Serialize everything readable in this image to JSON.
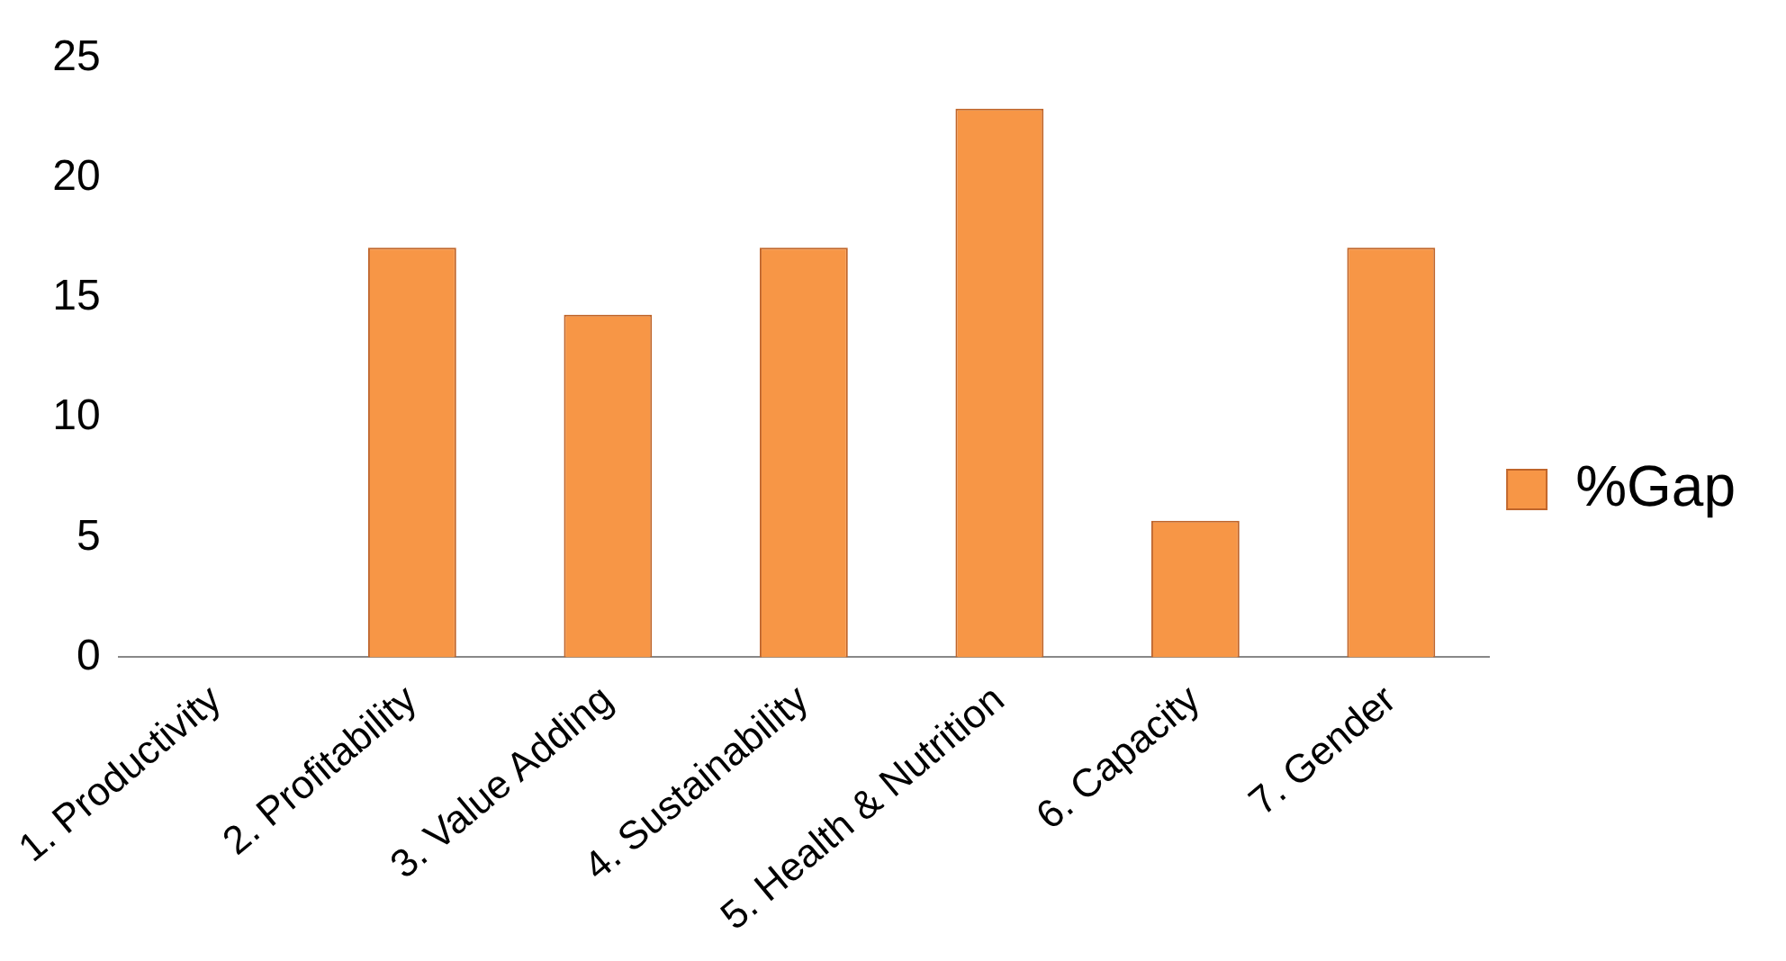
{
  "chart_data": {
    "type": "bar",
    "categories": [
      "1. Productivity",
      "2. Profitability",
      "3. Value Adding",
      "4. Sustainability",
      "5. Health & Nutrition",
      "6. Capacity",
      "7. Gender"
    ],
    "series": [
      {
        "name": "%Gap",
        "color": "#f79646",
        "values": [
          0,
          17.1,
          14.3,
          17.1,
          22.9,
          5.7,
          17.1
        ]
      }
    ],
    "ylim": [
      0,
      25
    ],
    "yticks": [
      0,
      5,
      10,
      15,
      20,
      25
    ],
    "grid": false,
    "legend": "right"
  }
}
